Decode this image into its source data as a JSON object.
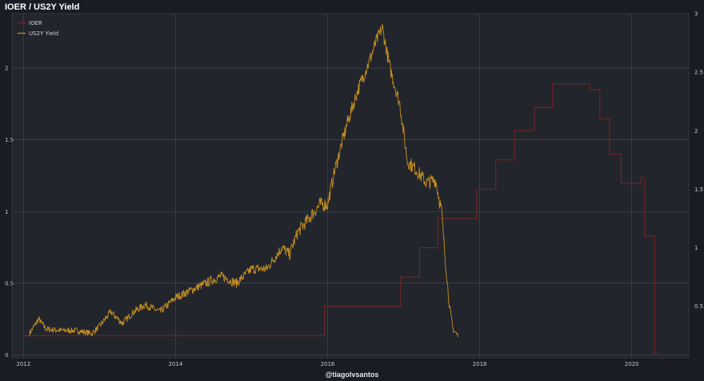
{
  "chart_data": {
    "type": "line",
    "title": "IOER / US2Y Yield",
    "legend_position": "top-left",
    "grid": true,
    "xlim": [
      2011.85,
      2020.75
    ],
    "x_ticks": [
      2012,
      2014,
      2016,
      2018,
      2020
    ],
    "left_axis": {
      "ylim": [
        -0.02,
        2.38
      ],
      "ticks": [
        0,
        0.5,
        1,
        1.5,
        2
      ],
      "tick_labels": [
        "0",
        "0.5",
        "1",
        "1.5",
        "2"
      ]
    },
    "right_axis": {
      "ylim": [
        0.06,
        3.0
      ],
      "ticks": [
        0.5,
        1,
        1.5,
        2,
        2.5,
        3
      ],
      "tick_labels": [
        "0.5",
        "1",
        "1.5",
        "2",
        "2.5",
        "3"
      ]
    },
    "colors": {
      "IOER": "#7d2424",
      "US2Y Yield": "#c79022",
      "background": "#22252c",
      "grid": "#4a4d55"
    },
    "series": [
      {
        "name": "IOER",
        "axis": "right",
        "step": true,
        "x": [
          2012.0,
          2015.96,
          2016.96,
          2017.21,
          2017.45,
          2017.96,
          2018.21,
          2018.46,
          2018.72,
          2018.96,
          2019.45,
          2019.58,
          2019.71,
          2019.86,
          2020.12,
          2020.17,
          2020.3
        ],
        "y": [
          0.25,
          0.5,
          0.75,
          1.0,
          1.25,
          1.5,
          1.75,
          2.0,
          2.2,
          2.4,
          2.35,
          2.1,
          1.8,
          1.55,
          1.6,
          1.1,
          0.1
        ]
      },
      {
        "name": "US2Y Yield",
        "axis": "left",
        "x": [
          2012.08,
          2012.2,
          2012.3,
          2012.5,
          2012.7,
          2012.9,
          2013.0,
          2013.15,
          2013.3,
          2013.45,
          2013.6,
          2013.8,
          2014.0,
          2014.2,
          2014.4,
          2014.6,
          2014.8,
          2015.0,
          2015.2,
          2015.4,
          2015.5,
          2015.6,
          2015.75,
          2015.9,
          2016.0,
          2016.1,
          2016.25,
          2016.4,
          2016.55,
          2016.65,
          2016.72,
          2016.82,
          2016.95,
          2017.05,
          2017.15,
          2017.3,
          2017.42,
          2017.5,
          2017.55,
          2017.6,
          2017.65,
          2017.72
        ],
        "y": [
          0.15,
          0.25,
          0.18,
          0.17,
          0.17,
          0.15,
          0.2,
          0.3,
          0.22,
          0.3,
          0.35,
          0.3,
          0.4,
          0.45,
          0.5,
          0.55,
          0.5,
          0.6,
          0.6,
          0.75,
          0.7,
          0.85,
          0.95,
          1.05,
          1.05,
          1.3,
          1.6,
          1.85,
          2.05,
          2.2,
          2.28,
          2.0,
          1.75,
          1.35,
          1.3,
          1.2,
          1.22,
          1.0,
          0.65,
          0.35,
          0.18,
          0.13
        ]
      }
    ]
  },
  "credit": "@tiagolvsantos"
}
